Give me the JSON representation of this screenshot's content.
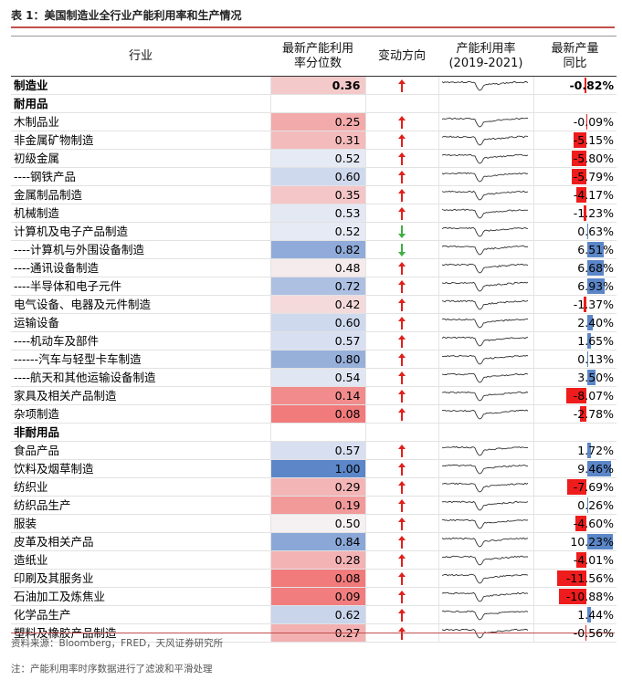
{
  "title": "表 1：美国制造业全行业产能利用率和生产情况",
  "headers": {
    "industry": "行业",
    "percentile": "最新产能利用率分位数",
    "direction": "变动方向",
    "utilization": "产能利用率(2019-2021)",
    "yoy": "最新产量同比"
  },
  "rows": [
    {
      "name": "制造业",
      "value": "0.36",
      "dir": "up",
      "yoy": "-0.82%",
      "yoy_num": -0.82,
      "pct": 0.36,
      "kind": "mfg"
    },
    {
      "name": "耐用品",
      "kind": "section"
    },
    {
      "name": "木制品业",
      "value": "0.25",
      "dir": "up",
      "yoy": "-0.09%",
      "yoy_num": -0.09,
      "pct": 0.25
    },
    {
      "name": "非金属矿物制造",
      "value": "0.31",
      "dir": "up",
      "yoy": "-5.15%",
      "yoy_num": -5.15,
      "pct": 0.31
    },
    {
      "name": "初级金属",
      "value": "0.52",
      "dir": "up",
      "yoy": "-5.80%",
      "yoy_num": -5.8,
      "pct": 0.52
    },
    {
      "name": "----钢铁产品",
      "value": "0.60",
      "dir": "up",
      "yoy": "-5.79%",
      "yoy_num": -5.79,
      "pct": 0.6
    },
    {
      "name": "金属制品制造",
      "value": "0.35",
      "dir": "up",
      "yoy": "-4.17%",
      "yoy_num": -4.17,
      "pct": 0.35
    },
    {
      "name": "机械制造",
      "value": "0.53",
      "dir": "up",
      "yoy": "-1.23%",
      "yoy_num": -1.23,
      "pct": 0.53
    },
    {
      "name": "计算机及电子产品制造",
      "value": "0.52",
      "dir": "down",
      "yoy": "0.63%",
      "yoy_num": 0.63,
      "pct": 0.52
    },
    {
      "name": "----计算机与外围设备制造",
      "value": "0.82",
      "dir": "down",
      "yoy": "6.51%",
      "yoy_num": 6.51,
      "pct": 0.82
    },
    {
      "name": "----通讯设备制造",
      "value": "0.48",
      "dir": "up",
      "yoy": "6.68%",
      "yoy_num": 6.68,
      "pct": 0.48
    },
    {
      "name": "----半导体和电子元件",
      "value": "0.72",
      "dir": "up",
      "yoy": "6.93%",
      "yoy_num": 6.93,
      "pct": 0.72
    },
    {
      "name": "电气设备、电器及元件制造",
      "value": "0.42",
      "dir": "up",
      "yoy": "-1.37%",
      "yoy_num": -1.37,
      "pct": 0.42
    },
    {
      "name": "运输设备",
      "value": "0.60",
      "dir": "up",
      "yoy": "2.40%",
      "yoy_num": 2.4,
      "pct": 0.6
    },
    {
      "name": "----机动车及部件",
      "value": "0.57",
      "dir": "up",
      "yoy": "1.65%",
      "yoy_num": 1.65,
      "pct": 0.57
    },
    {
      "name": "------汽车与轻型卡车制造",
      "value": "0.80",
      "dir": "up",
      "yoy": "0.13%",
      "yoy_num": 0.13,
      "pct": 0.8
    },
    {
      "name": "----航天和其他运输设备制造",
      "value": "0.54",
      "dir": "up",
      "yoy": "3.50%",
      "yoy_num": 3.5,
      "pct": 0.54
    },
    {
      "name": "家具及相关产品制造",
      "value": "0.14",
      "dir": "up",
      "yoy": "-8.07%",
      "yoy_num": -8.07,
      "pct": 0.14
    },
    {
      "name": "杂项制造",
      "value": "0.08",
      "dir": "up",
      "yoy": "-2.78%",
      "yoy_num": -2.78,
      "pct": 0.08
    },
    {
      "name": "非耐用品",
      "kind": "section"
    },
    {
      "name": "食品产品",
      "value": "0.57",
      "dir": "up",
      "yoy": "1.72%",
      "yoy_num": 1.72,
      "pct": 0.57
    },
    {
      "name": "饮料及烟草制造",
      "value": "1.00",
      "dir": "up",
      "yoy": "9.46%",
      "yoy_num": 9.46,
      "pct": 1.0
    },
    {
      "name": "纺织业",
      "value": "0.29",
      "dir": "up",
      "yoy": "-7.69%",
      "yoy_num": -7.69,
      "pct": 0.29
    },
    {
      "name": "纺织品生产",
      "value": "0.19",
      "dir": "up",
      "yoy": "0.26%",
      "yoy_num": 0.26,
      "pct": 0.19
    },
    {
      "name": "服装",
      "value": "0.50",
      "dir": "up",
      "yoy": "-4.60%",
      "yoy_num": -4.6,
      "pct": 0.5
    },
    {
      "name": "皮革及相关产品",
      "value": "0.84",
      "dir": "up",
      "yoy": "10.23%",
      "yoy_num": 10.23,
      "pct": 0.84
    },
    {
      "name": "造纸业",
      "value": "0.28",
      "dir": "up",
      "yoy": "-4.01%",
      "yoy_num": -4.01,
      "pct": 0.28
    },
    {
      "name": "印刷及其服务业",
      "value": "0.08",
      "dir": "up",
      "yoy": "-11.56%",
      "yoy_num": -11.56,
      "pct": 0.08
    },
    {
      "name": "石油加工及炼焦业",
      "value": "0.09",
      "dir": "up",
      "yoy": "-10.88%",
      "yoy_num": -10.88,
      "pct": 0.09
    },
    {
      "name": "化学品生产",
      "value": "0.62",
      "dir": "up",
      "yoy": "1.44%",
      "yoy_num": 1.44,
      "pct": 0.62
    },
    {
      "name": "塑料及橡胶产品制造",
      "value": "0.27",
      "dir": "up",
      "yoy": "-0.56%",
      "yoy_num": -0.56,
      "pct": 0.27
    }
  ],
  "source": "资料来源：Bloomberg，FRED，天风证券研究所",
  "note": "注：产能利用率时序数据进行了滤波和平滑处理",
  "colors": {
    "up_arrow": "#e0201b",
    "down_arrow": "#3cb043",
    "bar_negative": "#ee1c1c",
    "bar_positive": "#5b86c8",
    "rule": "#c0504d"
  }
}
